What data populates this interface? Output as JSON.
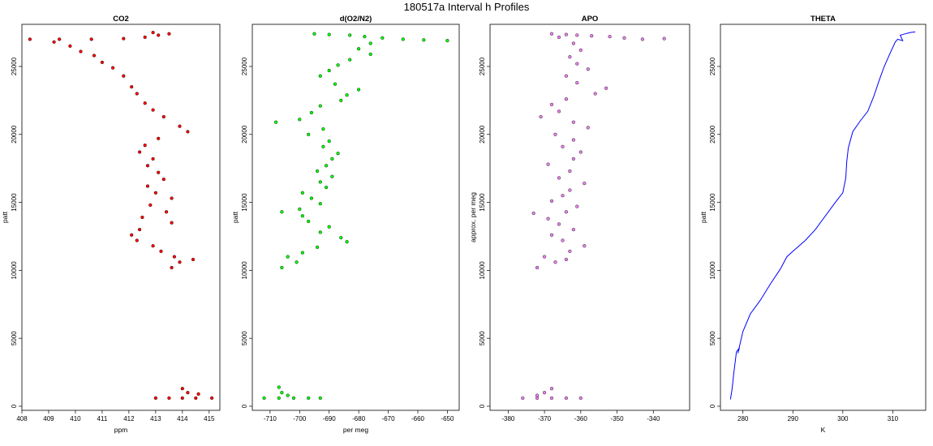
{
  "figure": {
    "title": "180517a   Interval h Profiles"
  },
  "chart_data": [
    {
      "type": "scatter",
      "title": "CO2",
      "xlabel": "ppm",
      "ylabel": "patt",
      "xlim": [
        408,
        415.4
      ],
      "ylim": [
        -300,
        28100
      ],
      "xticks": [
        "408",
        "409",
        "410",
        "411",
        "412",
        "413",
        "414",
        "415"
      ],
      "yticks": [
        "0",
        "5000",
        "10000",
        "15000",
        "20000",
        "25000"
      ],
      "color": "#ff0000",
      "edge_color": "#000000",
      "series": [
        {
          "name": "CO2",
          "points": [
            [
              408.3,
              27000
            ],
            [
              409.4,
              27000
            ],
            [
              410.6,
              27000
            ],
            [
              411.8,
              27050
            ],
            [
              412.6,
              27150
            ],
            [
              413.1,
              27300
            ],
            [
              413.5,
              27400
            ],
            [
              412.9,
              27500
            ],
            [
              409.2,
              26800
            ],
            [
              409.8,
              26500
            ],
            [
              410.2,
              26100
            ],
            [
              410.7,
              25800
            ],
            [
              411.0,
              25300
            ],
            [
              411.4,
              24900
            ],
            [
              411.8,
              24300
            ],
            [
              412.1,
              23500
            ],
            [
              412.3,
              23000
            ],
            [
              412.6,
              22300
            ],
            [
              412.9,
              21800
            ],
            [
              413.3,
              21300
            ],
            [
              413.9,
              20600
            ],
            [
              414.2,
              20200
            ],
            [
              413.1,
              19700
            ],
            [
              412.6,
              19200
            ],
            [
              412.4,
              18700
            ],
            [
              412.9,
              18200
            ],
            [
              412.7,
              17700
            ],
            [
              413.1,
              17200
            ],
            [
              413.3,
              16700
            ],
            [
              412.7,
              16200
            ],
            [
              413.0,
              15700
            ],
            [
              413.6,
              15300
            ],
            [
              412.8,
              14800
            ],
            [
              413.4,
              14300
            ],
            [
              412.5,
              13900
            ],
            [
              413.6,
              13500
            ],
            [
              412.4,
              13000
            ],
            [
              412.1,
              12600
            ],
            [
              412.3,
              12200
            ],
            [
              412.9,
              11800
            ],
            [
              413.2,
              11400
            ],
            [
              413.7,
              11000
            ],
            [
              413.9,
              10600
            ],
            [
              413.6,
              10200
            ],
            [
              414.4,
              10800
            ],
            [
              413.0,
              600
            ],
            [
              413.5,
              600
            ],
            [
              414.0,
              600
            ],
            [
              414.5,
              600
            ],
            [
              415.1,
              600
            ],
            [
              414.2,
              1000
            ],
            [
              414.0,
              1300
            ],
            [
              414.6,
              900
            ]
          ]
        }
      ]
    },
    {
      "type": "scatter",
      "title": "d(O2/N2)",
      "xlabel": "per meg",
      "ylabel": "patt",
      "xlim": [
        -716,
        -646
      ],
      "ylim": [
        -300,
        28100
      ],
      "xticks": [
        "-710",
        "-700",
        "-690",
        "-680",
        "-670",
        "-660",
        "-650"
      ],
      "yticks": [
        "0",
        "5000",
        "10000",
        "15000",
        "20000",
        "25000"
      ],
      "color": "#00ff00",
      "edge_color": "#000000",
      "series": [
        {
          "name": "d(O2/N2)",
          "points": [
            [
              -695,
              27400
            ],
            [
              -690,
              27350
            ],
            [
              -683,
              27300
            ],
            [
              -678,
              27200
            ],
            [
              -672,
              27100
            ],
            [
              -665,
              27000
            ],
            [
              -658,
              26950
            ],
            [
              -650,
              26900
            ],
            [
              -676,
              26700
            ],
            [
              -680,
              26300
            ],
            [
              -676,
              25900
            ],
            [
              -683,
              25500
            ],
            [
              -687,
              25100
            ],
            [
              -690,
              24700
            ],
            [
              -693,
              24300
            ],
            [
              -688,
              23700
            ],
            [
              -680,
              23300
            ],
            [
              -684,
              22900
            ],
            [
              -686,
              22500
            ],
            [
              -693,
              22100
            ],
            [
              -696,
              21600
            ],
            [
              -700,
              21100
            ],
            [
              -708,
              20900
            ],
            [
              -692,
              20400
            ],
            [
              -697,
              20000
            ],
            [
              -690,
              19500
            ],
            [
              -692,
              19100
            ],
            [
              -687,
              18600
            ],
            [
              -689,
              18200
            ],
            [
              -691,
              17700
            ],
            [
              -694,
              17300
            ],
            [
              -689,
              16900
            ],
            [
              -693,
              16500
            ],
            [
              -691,
              16100
            ],
            [
              -699,
              15700
            ],
            [
              -696,
              15300
            ],
            [
              -693,
              14900
            ],
            [
              -700,
              14500
            ],
            [
              -706,
              14300
            ],
            [
              -699,
              14000
            ],
            [
              -697,
              13600
            ],
            [
              -690,
              13200
            ],
            [
              -693,
              12800
            ],
            [
              -686,
              12400
            ],
            [
              -684,
              12100
            ],
            [
              -694,
              11700
            ],
            [
              -699,
              11300
            ],
            [
              -704,
              11000
            ],
            [
              -701,
              10600
            ],
            [
              -706,
              10200
            ],
            [
              -712,
              600
            ],
            [
              -707,
              600
            ],
            [
              -702,
              600
            ],
            [
              -697,
              600
            ],
            [
              -693,
              600
            ],
            [
              -706,
              1000
            ],
            [
              -707,
              1400
            ],
            [
              -704,
              800
            ]
          ]
        }
      ]
    },
    {
      "type": "scatter",
      "title": "APO",
      "xlabel": "",
      "ylabel": "approx. per meg",
      "xlim": [
        -385,
        -330
      ],
      "ylim": [
        -300,
        28100
      ],
      "xticks": [
        "-380",
        "-370",
        "-360",
        "-350",
        "-340"
      ],
      "yticks": [
        "0",
        "5000",
        "10000",
        "15000",
        "20000",
        "25000"
      ],
      "color": "#ee82ee",
      "edge_color": "#000000",
      "series": [
        {
          "name": "APO",
          "points": [
            [
              -368,
              27400
            ],
            [
              -364,
              27350
            ],
            [
              -361,
              27300
            ],
            [
              -357,
              27250
            ],
            [
              -352,
              27200
            ],
            [
              -348,
              27100
            ],
            [
              -343,
              27000
            ],
            [
              -337,
              27050
            ],
            [
              -366,
              27150
            ],
            [
              -362,
              26700
            ],
            [
              -360,
              26200
            ],
            [
              -363,
              25700
            ],
            [
              -361,
              25200
            ],
            [
              -358,
              24800
            ],
            [
              -364,
              24300
            ],
            [
              -361,
              23800
            ],
            [
              -353,
              23400
            ],
            [
              -356,
              23000
            ],
            [
              -364,
              22600
            ],
            [
              -368,
              22200
            ],
            [
              -366,
              21700
            ],
            [
              -371,
              21300
            ],
            [
              -362,
              20900
            ],
            [
              -358,
              20500
            ],
            [
              -367,
              20000
            ],
            [
              -362,
              19600
            ],
            [
              -365,
              19100
            ],
            [
              -360,
              18700
            ],
            [
              -362,
              18200
            ],
            [
              -369,
              17800
            ],
            [
              -363,
              17300
            ],
            [
              -366,
              16800
            ],
            [
              -359,
              16400
            ],
            [
              -363,
              15900
            ],
            [
              -365,
              15500
            ],
            [
              -368,
              15100
            ],
            [
              -361,
              14700
            ],
            [
              -364,
              14300
            ],
            [
              -373,
              14200
            ],
            [
              -369,
              13800
            ],
            [
              -366,
              13400
            ],
            [
              -362,
              13000
            ],
            [
              -368,
              12600
            ],
            [
              -365,
              12200
            ],
            [
              -359,
              11800
            ],
            [
              -363,
              11400
            ],
            [
              -370,
              11000
            ],
            [
              -367,
              10600
            ],
            [
              -372,
              10200
            ],
            [
              -364,
              10800
            ],
            [
              -376,
              600
            ],
            [
              -372,
              600
            ],
            [
              -368,
              600
            ],
            [
              -364,
              600
            ],
            [
              -360,
              600
            ],
            [
              -370,
              1000
            ],
            [
              -368,
              1300
            ],
            [
              -372,
              800
            ]
          ]
        }
      ]
    },
    {
      "type": "line",
      "title": "THETA",
      "xlabel": "K",
      "ylabel": "patt",
      "xlim": [
        275.5,
        316.6
      ],
      "ylim": [
        -300,
        28100
      ],
      "xticks": [
        "280",
        "290",
        "300",
        "310"
      ],
      "yticks": [
        "0",
        "5000",
        "10000",
        "15000",
        "20000",
        "25000"
      ],
      "color": "#0000ff",
      "series": [
        {
          "name": "THETA",
          "points": [
            [
              277.5,
              500
            ],
            [
              277.8,
              1200
            ],
            [
              278.2,
              2500
            ],
            [
              278.7,
              4000
            ],
            [
              279.3,
              4300
            ],
            [
              279.0,
              3900
            ],
            [
              280.0,
              5500
            ],
            [
              281.5,
              6800
            ],
            [
              283.5,
              7800
            ],
            [
              285.5,
              9000
            ],
            [
              287.5,
              10100
            ],
            [
              288.8,
              11000
            ],
            [
              290.0,
              11400
            ],
            [
              292.5,
              12200
            ],
            [
              294.5,
              13000
            ],
            [
              296.5,
              14000
            ],
            [
              298.5,
              15000
            ],
            [
              300.0,
              15700
            ],
            [
              300.6,
              16800
            ],
            [
              300.8,
              18000
            ],
            [
              301.1,
              19000
            ],
            [
              302.0,
              20200
            ],
            [
              303.5,
              21000
            ],
            [
              305.0,
              21700
            ],
            [
              306.2,
              22800
            ],
            [
              307.3,
              24000
            ],
            [
              308.3,
              25000
            ],
            [
              309.5,
              26000
            ],
            [
              310.5,
              26800
            ],
            [
              311.0,
              27000
            ],
            [
              312.0,
              26900
            ],
            [
              311.5,
              27300
            ],
            [
              312.5,
              27400
            ],
            [
              313.5,
              27500
            ],
            [
              314.5,
              27550
            ]
          ]
        }
      ]
    }
  ]
}
